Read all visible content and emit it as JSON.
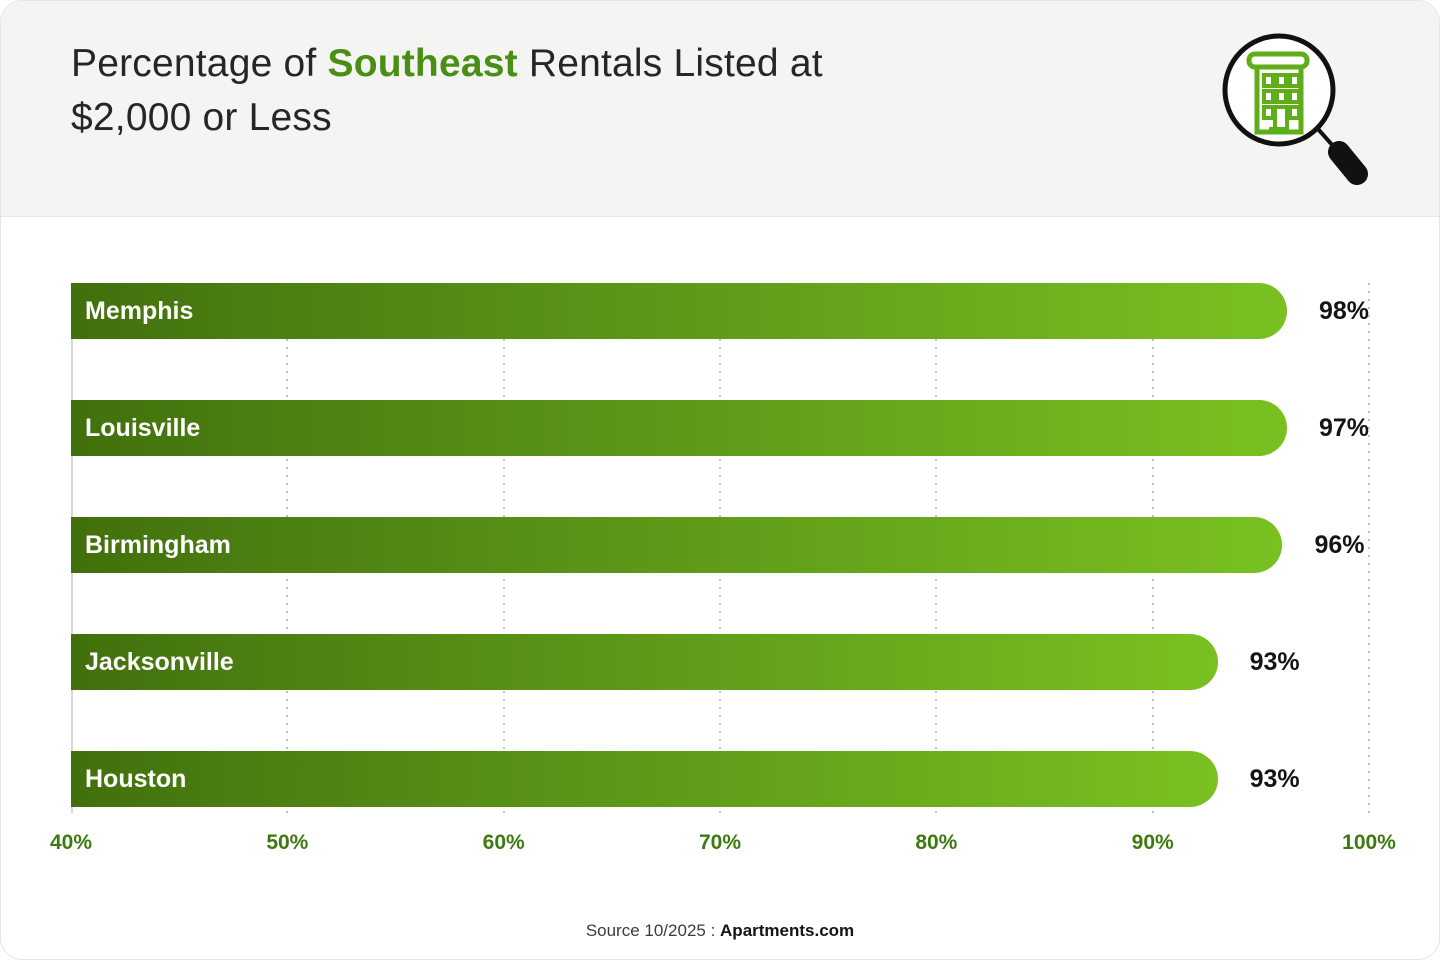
{
  "header": {
    "title_prefix": "Percentage of ",
    "title_highlight": "Southeast",
    "title_suffix": " Rentals Listed at",
    "title_line2": "$2,000 or Less",
    "icon": "magnifying-glass-over-apartment-building"
  },
  "chart_data": {
    "type": "bar",
    "orientation": "horizontal",
    "title": "Percentage of Southeast Rentals Listed at $2,000 or Less",
    "categories": [
      "Memphis",
      "Louisville",
      "Birmingham",
      "Jacksonville",
      "Houston"
    ],
    "values": [
      98,
      97,
      96,
      93,
      93
    ],
    "value_labels": [
      "98%",
      "97%",
      "96%",
      "93%",
      "93%"
    ],
    "xlim": [
      40,
      100
    ],
    "x_ticks": [
      "40%",
      "50%",
      "60%",
      "70%",
      "80%",
      "90%",
      "100%"
    ],
    "grid": "vertical dotted",
    "legend": "none"
  },
  "footer": {
    "source_prefix": "Source 10/2025 : ",
    "source_bold": "Apartments.com"
  },
  "colors": {
    "bar_gradient_start": "#426f0b",
    "bar_gradient_end": "#79c121",
    "tick_label_green": "#3d7a0f",
    "title_highlight_green": "#4a8e15",
    "header_background": "#f4f4f3",
    "value_label_black": "#141414",
    "icon_building_green": "#5fae19"
  }
}
